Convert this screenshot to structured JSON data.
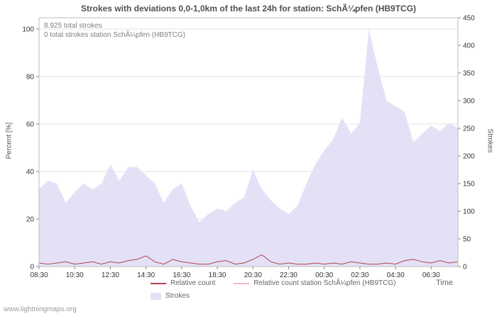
{
  "page": {
    "watermark": "www.lightningmaps.org"
  },
  "chart_data": {
    "type": "area",
    "title": "Strokes with deviations 0,0-1,0km of the last 24h for station: SchÃ¼pfen (HB9TCG)",
    "annotations": [
      "8.925 total strokes",
      "0 total strokes station SchÃ¼pfen (HB9TCG)"
    ],
    "x_axis_label": "Time",
    "left_axis": {
      "label": "Percent  [%]",
      "min": 0,
      "max": 100,
      "ticks": [
        0,
        20,
        40,
        60,
        80,
        100
      ]
    },
    "right_axis": {
      "label": "Strokes",
      "min": 0,
      "max": 450,
      "ticks": [
        0,
        50,
        100,
        150,
        200,
        250,
        300,
        350,
        400,
        450
      ]
    },
    "grid": true,
    "legend_position": "bottom",
    "x_tick_labels": [
      "08:30",
      "10:30",
      "12:30",
      "14:30",
      "16:30",
      "18:30",
      "20:30",
      "22:30",
      "00:30",
      "02:30",
      "04:30",
      "06:30"
    ],
    "x": [
      "08:30",
      "09:00",
      "09:30",
      "10:00",
      "10:30",
      "11:00",
      "11:30",
      "12:00",
      "12:30",
      "13:00",
      "13:30",
      "14:00",
      "14:30",
      "15:00",
      "15:30",
      "16:00",
      "16:30",
      "17:00",
      "17:30",
      "18:00",
      "18:30",
      "19:00",
      "19:30",
      "20:00",
      "20:30",
      "21:00",
      "21:30",
      "22:00",
      "22:30",
      "23:00",
      "23:30",
      "00:00",
      "00:30",
      "01:00",
      "01:30",
      "02:00",
      "02:30",
      "03:00",
      "03:30",
      "04:00",
      "04:30",
      "05:00",
      "05:30",
      "06:00",
      "06:30",
      "07:00",
      "07:30",
      "08:00"
    ],
    "series": [
      {
        "name": "Strokes",
        "type": "area",
        "axis": "right",
        "color": "#e4e1f7",
        "values": [
          140,
          155,
          150,
          115,
          135,
          150,
          140,
          150,
          185,
          155,
          180,
          180,
          165,
          150,
          115,
          140,
          150,
          110,
          80,
          95,
          105,
          100,
          115,
          125,
          175,
          140,
          120,
          105,
          95,
          110,
          150,
          185,
          210,
          230,
          270,
          240,
          260,
          430,
          360,
          300,
          290,
          280,
          225,
          240,
          255,
          245,
          260,
          250
        ]
      },
      {
        "name": "Relative count",
        "type": "line",
        "axis": "left",
        "color": "#b0424e",
        "values": [
          1.5,
          1,
          1.5,
          2,
          1,
          1.5,
          2,
          1,
          2,
          1.5,
          2.5,
          3,
          4.5,
          2,
          1,
          3,
          2,
          1.5,
          1,
          1,
          2,
          2.5,
          1,
          1.5,
          3,
          5,
          2,
          1,
          1.5,
          1,
          1,
          1.5,
          1,
          1.5,
          1,
          2,
          1.5,
          1,
          1,
          1.5,
          1,
          2.5,
          3,
          2,
          1.5,
          2.5,
          1.5,
          2
        ]
      },
      {
        "name": "Relative count station SchÃ¼pfen (HB9TCG)",
        "type": "line",
        "axis": "left",
        "color": "#f4b9c1",
        "values": [
          0,
          0,
          0,
          0,
          0,
          0,
          0,
          0,
          0,
          0,
          0,
          0,
          0,
          0,
          0,
          0,
          0,
          0,
          0,
          0,
          0,
          0,
          0,
          0,
          0,
          0,
          0,
          0,
          0,
          0,
          0,
          0,
          0,
          0,
          0,
          0,
          0,
          0,
          0,
          0,
          0,
          0,
          0,
          0,
          0,
          0,
          0,
          0
        ]
      }
    ]
  }
}
